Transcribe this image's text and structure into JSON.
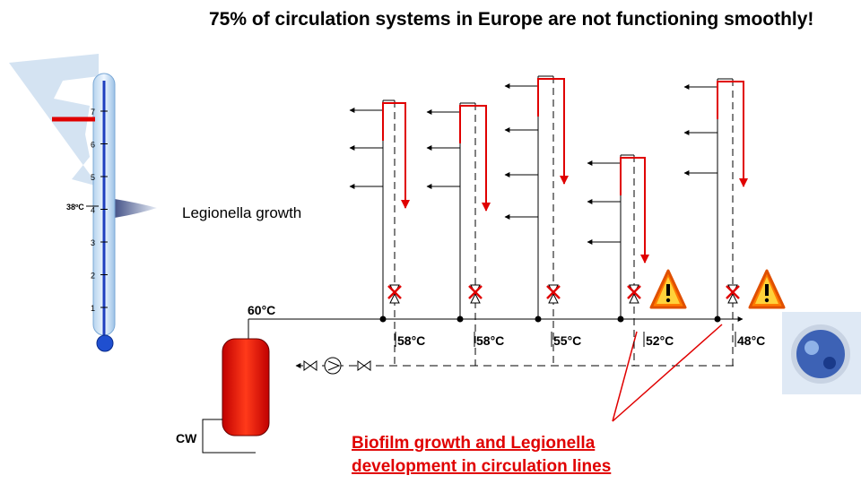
{
  "title": "75% of circulation systems in Europe are not functioning smoothly!",
  "legionella_label": "Legionella growth",
  "thermometer": {
    "reference": "38ºC",
    "scale": [
      "1",
      "2",
      "3",
      "4",
      "5",
      "6",
      "7"
    ]
  },
  "supply_temperature": "60°C",
  "cold_water": "CW",
  "riser_temperatures": [
    "58°C",
    "58°C",
    "55°C",
    "52°C",
    "48°C"
  ],
  "warning": [
    "Biofilm growth and Legionella",
    "development in circulation lines"
  ]
}
